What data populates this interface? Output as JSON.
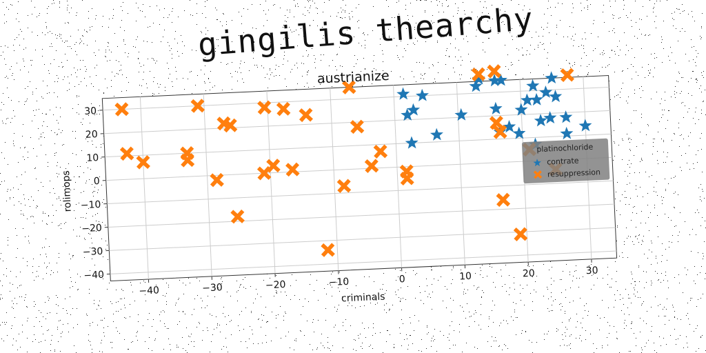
{
  "page": {
    "main_title": "gingilis thearchy"
  },
  "colors": {
    "series1": "#1f77b4",
    "series2": "#ff7f0e",
    "grid": "#cccccc",
    "legend_bg": "#808080"
  },
  "chart_data": {
    "type": "scatter",
    "title": "austrianize",
    "xlabel": "criminals",
    "ylabel": "rolimops",
    "xlim": [
      -46,
      34
    ],
    "ylim": [
      -43,
      35
    ],
    "xticks": [
      -40,
      -30,
      -20,
      -10,
      0,
      10,
      20,
      30
    ],
    "yticks": [
      -40,
      -30,
      -20,
      -10,
      0,
      10,
      20,
      30
    ],
    "xtick_labels": [
      "−40",
      "−30",
      "−20",
      "−10",
      "0",
      "10",
      "20",
      "30"
    ],
    "ytick_labels": [
      "−40",
      "−30",
      "−20",
      "−10",
      "0",
      "10",
      "20",
      "30"
    ],
    "grid": true,
    "legend": {
      "title": "platinochloride",
      "placement": "right",
      "entries": [
        "contrate",
        "resuppression"
      ]
    },
    "series": [
      {
        "name": "contrate",
        "marker": "star",
        "points": [
          [
            1.5,
            31
          ],
          [
            4.5,
            30
          ],
          [
            2,
            22
          ],
          [
            3,
            24
          ],
          [
            2.5,
            10
          ],
          [
            6.5,
            13
          ],
          [
            10.5,
            21
          ],
          [
            13,
            33
          ],
          [
            13.5,
            36
          ],
          [
            16,
            35
          ],
          [
            17,
            35
          ],
          [
            16,
            23
          ],
          [
            16.5,
            13
          ],
          [
            18,
            15
          ],
          [
            19.5,
            12
          ],
          [
            20,
            22
          ],
          [
            21,
            26
          ],
          [
            22,
            32
          ],
          [
            22.5,
            26
          ],
          [
            23,
            17
          ],
          [
            24,
            29
          ],
          [
            25,
            35
          ],
          [
            25.5,
            27
          ],
          [
            27,
            18
          ],
          [
            27,
            11
          ],
          [
            24.5,
            18
          ],
          [
            30,
            14
          ],
          [
            22,
            7
          ]
        ]
      },
      {
        "name": "resuppression",
        "marker": "x",
        "points": [
          [
            -43,
            30
          ],
          [
            -42.5,
            11
          ],
          [
            -40,
            7
          ],
          [
            -33,
            10
          ],
          [
            -33,
            7
          ],
          [
            -31,
            30
          ],
          [
            -28.5,
            -2
          ],
          [
            -27,
            22
          ],
          [
            -26,
            21
          ],
          [
            -25.5,
            -18
          ],
          [
            -21,
            0
          ],
          [
            -20.5,
            28
          ],
          [
            -19.5,
            3
          ],
          [
            -17.5,
            27
          ],
          [
            -16.5,
            1
          ],
          [
            -14,
            24
          ],
          [
            -11.5,
            -34
          ],
          [
            -8.5,
            -7
          ],
          [
            -7,
            35
          ],
          [
            -6,
            18
          ],
          [
            -4,
            1
          ],
          [
            -2.5,
            7
          ],
          [
            1.5,
            -2
          ],
          [
            1.5,
            -5
          ],
          [
            13.5,
            38
          ],
          [
            16,
            17
          ],
          [
            16.5,
            13
          ],
          [
            16,
            39
          ],
          [
            16.5,
            -16
          ],
          [
            19,
            -31
          ],
          [
            21,
            5
          ],
          [
            25,
            -4
          ],
          [
            27.5,
            36
          ]
        ]
      }
    ]
  }
}
